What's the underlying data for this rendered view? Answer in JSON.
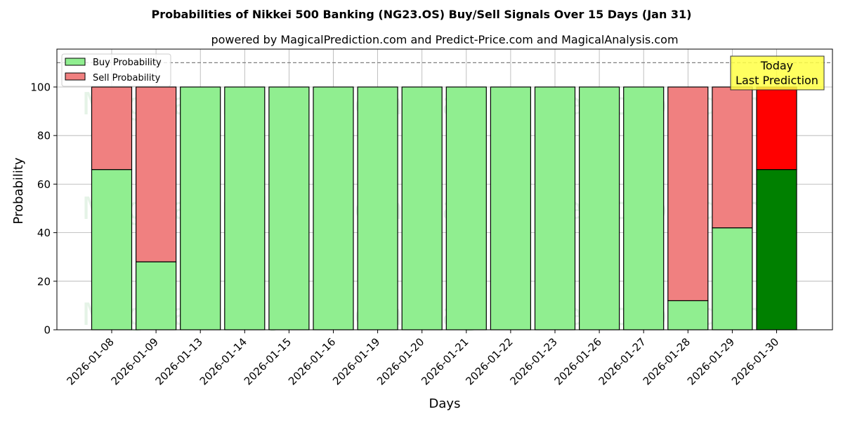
{
  "chart_data": {
    "type": "bar",
    "stacked": true,
    "title": "Probabilities of Nikkei 500 Banking (NG23.OS) Buy/Sell Signals Over 15 Days (Jan 31)",
    "subtitle": "powered by MagicalPrediction.com and Predict-Price.com and MagicalAnalysis.com",
    "xlabel": "Days",
    "ylabel": "Probability",
    "ylim": [
      0,
      115.6
    ],
    "yticks": [
      0,
      20,
      40,
      60,
      80,
      100
    ],
    "grid": true,
    "legend_position": "upper left",
    "reference_line": {
      "y": 110,
      "style": "dashed",
      "color": "#808080"
    },
    "annotation": {
      "text_line1": "Today",
      "text_line2": "Last Prediction",
      "background": "#ffff44"
    },
    "watermarks": [
      "MagicalAnalysis.com",
      "MagicalPrediction.com"
    ],
    "categories": [
      "2026-01-08",
      "2026-01-09",
      "2026-01-13",
      "2026-01-14",
      "2026-01-15",
      "2026-01-16",
      "2026-01-19",
      "2026-01-20",
      "2026-01-21",
      "2026-01-22",
      "2026-01-23",
      "2026-01-26",
      "2026-01-27",
      "2026-01-28",
      "2026-01-29",
      "2026-01-30"
    ],
    "series": [
      {
        "name": "Buy Probability",
        "color": "#90ee90",
        "highlight_color": "#008000",
        "values": [
          66,
          28,
          100,
          100,
          100,
          100,
          100,
          100,
          100,
          100,
          100,
          100,
          100,
          12,
          42,
          66
        ]
      },
      {
        "name": "Sell Probability",
        "color": "#f08080",
        "highlight_color": "#ff0000",
        "values": [
          34,
          72,
          0,
          0,
          0,
          0,
          0,
          0,
          0,
          0,
          0,
          0,
          0,
          88,
          58,
          34
        ]
      }
    ],
    "highlight_index": 15
  }
}
